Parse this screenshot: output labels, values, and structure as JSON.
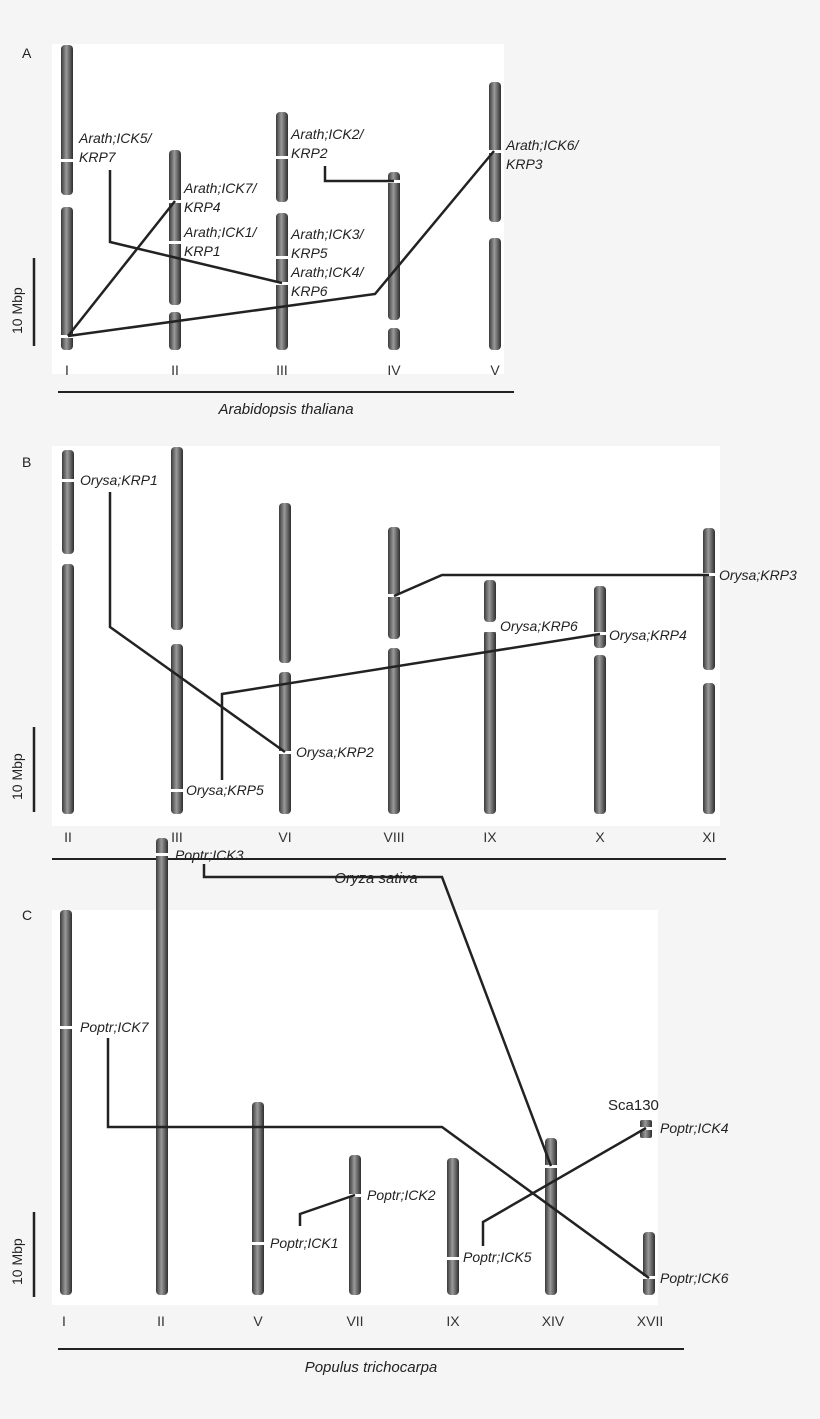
{
  "panels": [
    {
      "letter": "A",
      "species": "Arabidopsis thaliana",
      "scale_label": "10 Mbp",
      "chromosomes": [
        "I",
        "II",
        "III",
        "IV",
        "V"
      ],
      "genes": [
        {
          "line1": "Arath;ICK5/",
          "line2": "KRP7"
        },
        {
          "line1": "Arath;ICK7/",
          "line2": "KRP4"
        },
        {
          "line1": "Arath;ICK1/",
          "line2": "KRP1"
        },
        {
          "line1": "Arath;ICK2/",
          "line2": "KRP2"
        },
        {
          "line1": "Arath;ICK3/",
          "line2": "KRP5"
        },
        {
          "line1": "Arath;ICK4/",
          "line2": "KRP6"
        },
        {
          "line1": "Arath;ICK6/",
          "line2": "KRP3"
        }
      ]
    },
    {
      "letter": "B",
      "species": "Oryza sativa",
      "scale_label": "10 Mbp",
      "chromosomes": [
        "II",
        "III",
        "VI",
        "VIII",
        "IX",
        "X",
        "XI"
      ],
      "genes": [
        "Orysa;KRP1",
        "Orysa;KRP2",
        "Orysa;KRP5",
        "Orysa;KRP6",
        "Orysa;KRP4",
        "Orysa;KRP3"
      ]
    },
    {
      "letter": "C",
      "species": "Populus trichocarpa",
      "scale_label": "10 Mbp",
      "chromosomes": [
        "I",
        "II",
        "V",
        "VII",
        "IX",
        "XIV",
        "XVII"
      ],
      "scaffold": "Sca130",
      "genes": [
        "Poptr;ICK7",
        "Poptr;ICK3",
        "Poptr;ICK2",
        "Poptr;ICK1",
        "Poptr;ICK5",
        "Poptr;ICK4",
        "Poptr;ICK6"
      ]
    }
  ]
}
